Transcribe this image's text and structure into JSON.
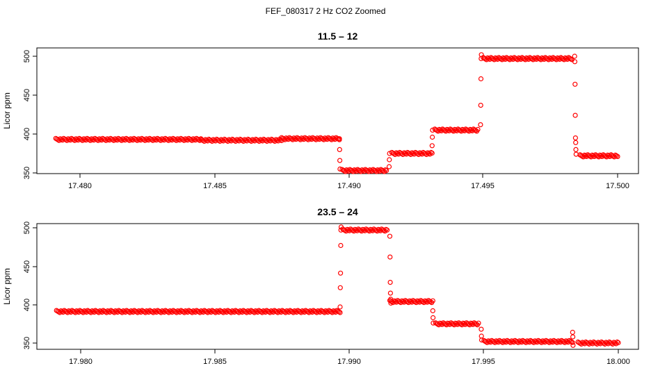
{
  "figure": {
    "title": "FEF_080317  2 Hz CO2 Zoomed"
  },
  "chart_data": [
    {
      "type": "scatter",
      "title": "11.5 – 12",
      "xlabel": "",
      "ylabel": "Licor ppm",
      "xlim": [
        17.4791,
        17.5
      ],
      "ylim": [
        345,
        507
      ],
      "xticks": [
        "17.480",
        "17.485",
        "17.490",
        "17.495",
        "17.500"
      ],
      "yticks": [
        "350",
        "400",
        "450",
        "500"
      ],
      "grid": false,
      "color": "#ff0000",
      "segments": [
        {
          "x": [
            17.4791,
            17.4845
          ],
          "y": 393
        },
        {
          "x": [
            17.4845,
            17.4875
          ],
          "y": 392
        },
        {
          "x": [
            17.4875,
            17.48965
          ],
          "y": 394
        },
        {
          "x": [
            17.48975,
            17.4914
          ],
          "y": 353
        },
        {
          "x": [
            17.4916,
            17.4931
          ],
          "y": 375
        },
        {
          "x": [
            17.4932,
            17.4948
          ],
          "y": 405
        },
        {
          "x": [
            17.495,
            17.4983
          ],
          "y": 497
        },
        {
          "x": [
            17.4986,
            17.5
          ],
          "y": 372
        }
      ],
      "transitions": [
        {
          "x": 17.48965,
          "y": [
            394,
            380,
            366,
            355
          ]
        },
        {
          "x": 17.4915,
          "y": [
            358,
            367,
            375
          ]
        },
        {
          "x": 17.4931,
          "y": [
            385,
            396,
            405
          ]
        },
        {
          "x": 17.4949,
          "y": [
            412,
            437,
            471,
            497,
            502
          ]
        },
        {
          "x": 17.4984,
          "y": [
            500,
            493,
            464,
            424,
            395,
            389,
            380,
            374
          ]
        }
      ]
    },
    {
      "type": "scatter",
      "title": "23.5 – 24",
      "xlabel": "",
      "ylabel": "Licor ppm",
      "xlim": [
        17.9791,
        18.0
      ],
      "ylim": [
        342,
        507
      ],
      "xticks": [
        "17.980",
        "17.985",
        "17.990",
        "17.995",
        "18.000"
      ],
      "yticks": [
        "350",
        "400",
        "450",
        "500"
      ],
      "grid": false,
      "color": "#ff0000",
      "segments": [
        {
          "x": [
            17.9791,
            17.98965
          ],
          "y": 391
        },
        {
          "x": [
            17.98975,
            17.9914
          ],
          "y": 497
        },
        {
          "x": [
            17.9915,
            17.9931
          ],
          "y": 404
        },
        {
          "x": [
            17.9932,
            17.9948
          ],
          "y": 375
        },
        {
          "x": [
            17.995,
            17.9983
          ],
          "y": 352
        },
        {
          "x": [
            17.9985,
            18.0
          ],
          "y": 350
        }
      ],
      "transitions": [
        {
          "x": 17.98965,
          "y": [
            397,
            422,
            441,
            477,
            497,
            501
          ]
        },
        {
          "x": 17.9915,
          "y": [
            489,
            462,
            429,
            415,
            407,
            402
          ]
        },
        {
          "x": 17.9931,
          "y": [
            392,
            383,
            376
          ]
        },
        {
          "x": 17.9949,
          "y": [
            368,
            359,
            354
          ]
        },
        {
          "x": 17.9983,
          "y": [
            364,
            358,
            347
          ]
        }
      ]
    }
  ]
}
